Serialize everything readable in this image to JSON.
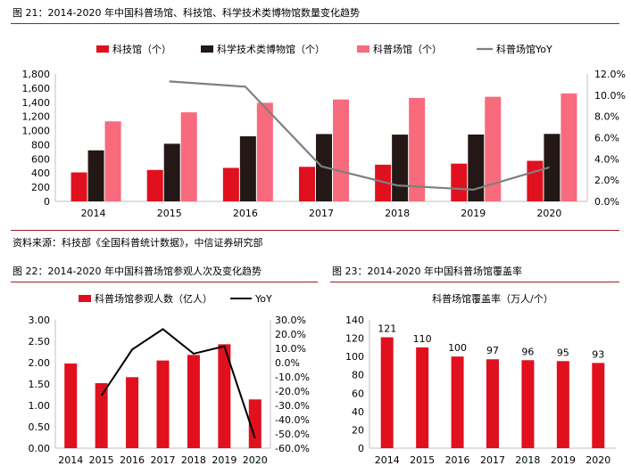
{
  "figure21": {
    "title": "图 21：2014-2020 年中国科普场馆、科技馆、科学技术类博物馆数量变化趋势",
    "source": "资料来源：科技部《全国科普统计数据》，中信证券研究部"
  },
  "figure22": {
    "title": "图 22：2014-2020 年中国科普场馆参观人次及变化趋势"
  },
  "figure23": {
    "title": "图 23：2014-2020 年中国科普场馆覆盖率"
  },
  "colors": {
    "red": "#e0101e",
    "dark": "#231815",
    "pink": "#f76b7c",
    "gray": "#7f7f7f",
    "black": "#000000"
  },
  "chart_data": [
    {
      "type": "bar",
      "categories": [
        "2014",
        "2015",
        "2016",
        "2017",
        "2018",
        "2019",
        "2020"
      ],
      "series": [
        {
          "name": "科技馆（个）",
          "values": [
            409,
            444,
            473,
            488,
            518,
            533,
            573
          ],
          "axis": "left"
        },
        {
          "name": "科学技术类博物馆（个）",
          "values": [
            721,
            814,
            920,
            951,
            943,
            944,
            953
          ],
          "axis": "left"
        },
        {
          "name": "科普场馆（个）",
          "values": [
            1130,
            1258,
            1393,
            1439,
            1461,
            1477,
            1525
          ],
          "axis": "left"
        },
        {
          "name": "科普场馆YoY",
          "type": "line",
          "values": [
            null,
            11.3,
            10.8,
            3.3,
            1.5,
            1.1,
            3.2
          ],
          "axis": "right"
        }
      ],
      "ylim": [
        0,
        1800
      ],
      "y_ticks": [
        "0",
        "200",
        "400",
        "600",
        "800",
        "1,000",
        "1,200",
        "1,400",
        "1,600",
        "1,800"
      ],
      "y2lim": [
        0,
        12
      ],
      "y2_ticks": [
        "0.0%",
        "2.0%",
        "4.0%",
        "6.0%",
        "8.0%",
        "10.0%",
        "12.0%"
      ],
      "legend": "top"
    },
    {
      "type": "bar",
      "categories": [
        "2014",
        "2015",
        "2016",
        "2017",
        "2018",
        "2019",
        "2020"
      ],
      "series": [
        {
          "name": "科普场馆参观人数（亿人）",
          "values": [
            1.98,
            1.52,
            1.66,
            2.05,
            2.18,
            2.43,
            1.14
          ],
          "axis": "left"
        },
        {
          "name": "YoY",
          "type": "line",
          "values": [
            null,
            -23.2,
            9.2,
            23.5,
            6.3,
            11.5,
            -53.1
          ],
          "axis": "right"
        }
      ],
      "ylim": [
        0,
        3
      ],
      "y_ticks": [
        "0.00",
        "0.50",
        "1.00",
        "1.50",
        "2.00",
        "2.50",
        "3.00"
      ],
      "y2lim": [
        -60,
        30
      ],
      "y2_ticks": [
        "-60.0%",
        "-50.0%",
        "-40.0%",
        "-30.0%",
        "-20.0%",
        "-10.0%",
        "0.0%",
        "10.0%",
        "20.0%",
        "30.0%"
      ],
      "legend": "top"
    },
    {
      "type": "bar",
      "title": "科普场馆覆盖率（万人/个）",
      "categories": [
        "2014",
        "2015",
        "2016",
        "2017",
        "2018",
        "2019",
        "2020"
      ],
      "values": [
        121,
        110,
        100,
        97,
        96,
        95,
        93
      ],
      "value_labels": [
        "121",
        "110",
        "100",
        "97",
        "96",
        "95",
        "93"
      ],
      "ylim": [
        0,
        140
      ],
      "y_ticks": [
        "0",
        "20",
        "40",
        "60",
        "80",
        "100",
        "120",
        "140"
      ]
    }
  ]
}
